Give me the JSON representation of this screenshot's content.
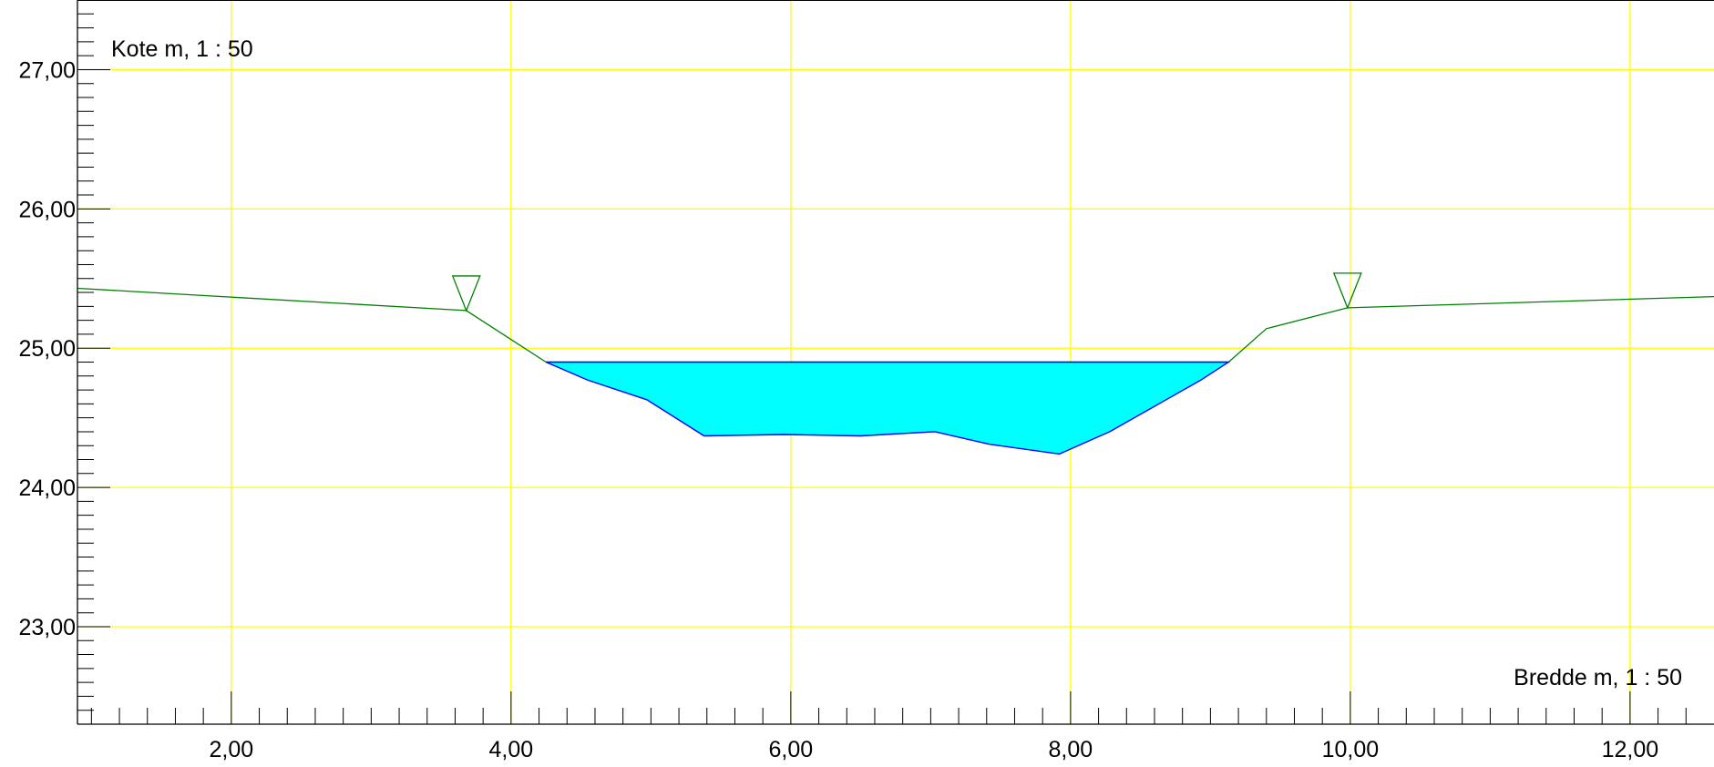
{
  "chart_data": {
    "type": "area",
    "ylabel": "Kote m, 1 : 50",
    "xlabel": "Bredde m, 1 : 50",
    "xlim": [
      0.9,
      12.6
    ],
    "ylim": [
      22.3,
      27.5
    ],
    "x_ticks": [
      2,
      4,
      6,
      8,
      10,
      12
    ],
    "x_tick_labels": [
      "2,00",
      "4,00",
      "6,00",
      "8,00",
      "10,00",
      "12,00"
    ],
    "y_ticks": [
      23,
      24,
      25,
      26,
      27
    ],
    "y_tick_labels": [
      "23,00",
      "24,00",
      "25,00",
      "26,00",
      "27,00"
    ],
    "grid": true,
    "colors": {
      "grid": "#ffff00",
      "terrain": "#008000",
      "water_fill": "#00ffff",
      "water_line": "#0000ff"
    },
    "series": [
      {
        "role": "terrain",
        "x": [
          0.9,
          3.68,
          4.25,
          9.13,
          9.4,
          9.98,
          12.6
        ],
        "y": [
          25.43,
          25.27,
          24.9,
          24.9,
          25.14,
          25.29,
          25.37
        ]
      },
      {
        "role": "water",
        "x": [
          4.25,
          4.55,
          4.97,
          5.38,
          5.95,
          6.5,
          7.03,
          7.42,
          7.92,
          8.28,
          8.93,
          9.13
        ],
        "y": [
          24.9,
          24.77,
          24.63,
          24.37,
          24.38,
          24.37,
          24.4,
          24.31,
          24.24,
          24.4,
          24.77,
          24.9
        ]
      }
    ],
    "markers": [
      {
        "symbol": "water-level-triangle",
        "x": 3.68,
        "y": 25.27
      },
      {
        "symbol": "water-level-triangle",
        "x": 9.98,
        "y": 25.29
      }
    ]
  }
}
